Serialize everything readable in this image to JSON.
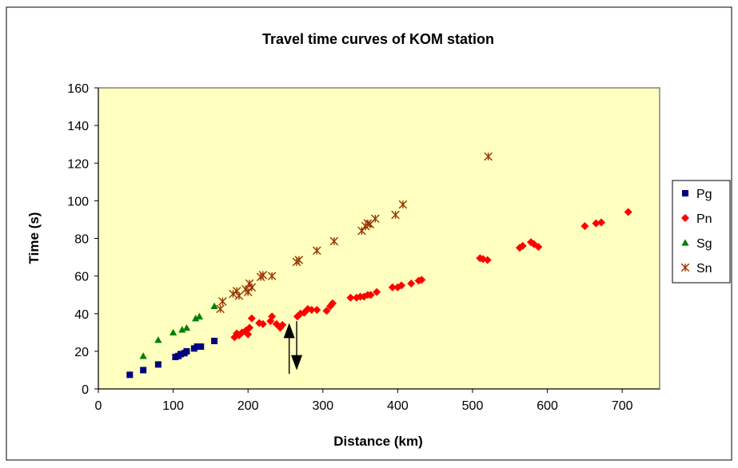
{
  "chart_data": {
    "type": "scatter",
    "title": "Travel time curves of KOM station",
    "xlabel": "Distance (km)",
    "ylabel": "Time (s)",
    "xlim": [
      0,
      750
    ],
    "ylim": [
      0,
      160
    ],
    "x_ticks": [
      "0",
      "100",
      "200",
      "300",
      "400",
      "500",
      "600",
      "700"
    ],
    "y_ticks": [
      "0",
      "20",
      "40",
      "60",
      "80",
      "100",
      "120",
      "140",
      "160"
    ],
    "grid": false,
    "legend_position": "right",
    "plot_background": "#ffffc0",
    "annotation": "double vertical arrow (up and down) near x≈255–265 km, y≈8–35 s",
    "series": [
      {
        "name": "Pg",
        "marker": "square",
        "color": "#00007f",
        "points": [
          [
            42,
            7.5
          ],
          [
            60,
            10
          ],
          [
            80,
            13
          ],
          [
            103,
            17
          ],
          [
            107,
            17.5
          ],
          [
            110,
            18.5
          ],
          [
            115,
            19
          ],
          [
            118,
            20
          ],
          [
            128,
            21.5
          ],
          [
            132,
            22.5
          ],
          [
            137,
            22.5
          ],
          [
            155,
            25.5
          ]
        ]
      },
      {
        "name": "Pn",
        "marker": "diamond",
        "color": "#ff0000",
        "points": [
          [
            182,
            27.5
          ],
          [
            185,
            29.5
          ],
          [
            188,
            28.5
          ],
          [
            192,
            30
          ],
          [
            197,
            31
          ],
          [
            200,
            29
          ],
          [
            202,
            32.5
          ],
          [
            205,
            37.5
          ],
          [
            215,
            35
          ],
          [
            220,
            34.5
          ],
          [
            230,
            36
          ],
          [
            232,
            38.5
          ],
          [
            238,
            34.5
          ],
          [
            243,
            32.5
          ],
          [
            246,
            34
          ],
          [
            266,
            38.5
          ],
          [
            270,
            40
          ],
          [
            275,
            40.5
          ],
          [
            280,
            42.5
          ],
          [
            285,
            42
          ],
          [
            292,
            42
          ],
          [
            305,
            41.5
          ],
          [
            310,
            44
          ],
          [
            313,
            45.5
          ],
          [
            337,
            48.5
          ],
          [
            345,
            48.5
          ],
          [
            350,
            49
          ],
          [
            355,
            49
          ],
          [
            360,
            50
          ],
          [
            364,
            50
          ],
          [
            372,
            51.5
          ],
          [
            393,
            54
          ],
          [
            400,
            54
          ],
          [
            405,
            55
          ],
          [
            418,
            56
          ],
          [
            428,
            57.5
          ],
          [
            432,
            58
          ],
          [
            510,
            69.5
          ],
          [
            514,
            69
          ],
          [
            520,
            68.5
          ],
          [
            563,
            75
          ],
          [
            567,
            76
          ],
          [
            578,
            78
          ],
          [
            582,
            77
          ],
          [
            588,
            75.5
          ],
          [
            650,
            86.5
          ],
          [
            665,
            88
          ],
          [
            672,
            88.5
          ],
          [
            708,
            94
          ]
        ]
      },
      {
        "name": "Sg",
        "marker": "triangle",
        "color": "#008000",
        "points": [
          [
            60,
            17.5
          ],
          [
            80,
            26
          ],
          [
            100,
            30
          ],
          [
            112,
            31.5
          ],
          [
            118,
            32.5
          ],
          [
            130,
            37.5
          ],
          [
            135,
            38.5
          ],
          [
            155,
            44
          ]
        ]
      },
      {
        "name": "Sn",
        "marker": "asterisk",
        "color": "#993300",
        "points": [
          [
            163,
            42.5
          ],
          [
            166,
            46.5
          ],
          [
            180,
            50.5
          ],
          [
            185,
            52
          ],
          [
            188,
            49.5
          ],
          [
            197,
            53
          ],
          [
            200,
            51.5
          ],
          [
            202,
            56
          ],
          [
            205,
            54
          ],
          [
            217,
            59.5
          ],
          [
            220,
            60.5
          ],
          [
            232,
            60
          ],
          [
            265,
            67.5
          ],
          [
            268,
            68.5
          ],
          [
            292,
            73.5
          ],
          [
            315,
            78.5
          ],
          [
            352,
            84
          ],
          [
            357,
            86.5
          ],
          [
            360,
            88
          ],
          [
            363,
            87.5
          ],
          [
            370,
            90.5
          ],
          [
            397,
            92.5
          ],
          [
            407,
            98
          ],
          [
            521,
            123.5
          ]
        ]
      }
    ]
  }
}
